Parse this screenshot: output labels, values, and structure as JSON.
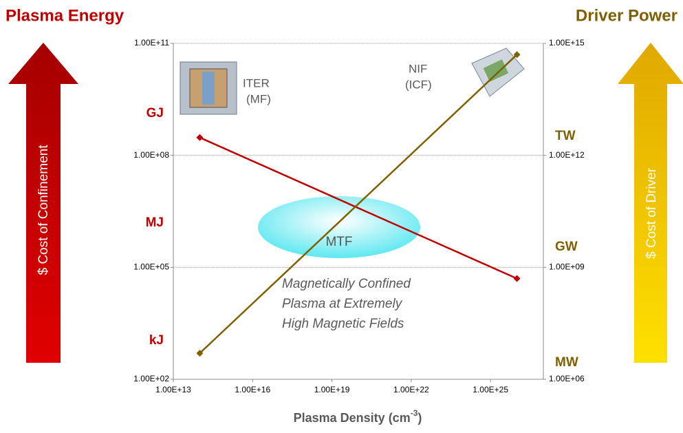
{
  "chart_data": {
    "type": "line",
    "y_label": "Plasma Energy",
    "y2_label": "Driver Power",
    "left_arrow_label": "$ Cost of Confinement",
    "right_arrow_label": "$ Cost of Driver",
    "left_units": [
      "GJ",
      "MJ",
      "kJ"
    ],
    "right_units": [
      "TW",
      "GW",
      "MW"
    ],
    "x_label": {
      "text": "Plasma Density (cm",
      "sup": "-3",
      "end": ")"
    },
    "iter_label": [
      "ITER",
      "(MF)"
    ],
    "nif_label": [
      "NIF",
      "(ICF)"
    ],
    "mtf_label": "MTF",
    "annotation": [
      "Magnetically Confined",
      "Plasma at Extremely",
      "High Magnetic Fields"
    ],
    "x_log": true,
    "y_log": true,
    "y2_log": true,
    "grid": true,
    "x": [
      100000000000000.0,
      1e+26
    ],
    "series": [
      {
        "color": "#c00000",
        "values": [
          300000000.0,
          50000.0
        ]
      },
      {
        "color": "#7f6000",
        "values": [
          5000000.0,
          500000000000000.0
        ],
        "axis": "y2"
      }
    ],
    "xlim": [
      10000000000000.0,
      1e+27
    ],
    "xticks": [
      {
        "value": 10000000000000.0,
        "label": "1.00E+13"
      },
      {
        "value": 1e+16,
        "label": "1.00E+16"
      },
      {
        "value": 1e+19,
        "label": "1.00E+19"
      },
      {
        "value": 1e+22,
        "label": "1.00E+22"
      },
      {
        "value": 1e+25,
        "label": "1.00E+25"
      }
    ],
    "ylim": [
      100.0,
      100000000000.0
    ],
    "yticks": [
      {
        "value": 100.0,
        "label": "1.00E+02"
      },
      {
        "value": 100000.0,
        "label": "1.00E+05"
      },
      {
        "value": 100000000.0,
        "label": "1.00E+08"
      },
      {
        "value": 100000000000.0,
        "label": "1.00E+11"
      }
    ],
    "y2lim": [
      1000000.0,
      1000000000000000.0
    ],
    "y2ticks": [
      {
        "value": 1000000.0,
        "label": "1.00E+06"
      },
      {
        "value": 1000000000.0,
        "label": "1.00E+09"
      },
      {
        "value": 1000000000000.0,
        "label": "1.00E+12"
      },
      {
        "value": 1000000000000000.0,
        "label": "1.00E+15"
      }
    ]
  }
}
